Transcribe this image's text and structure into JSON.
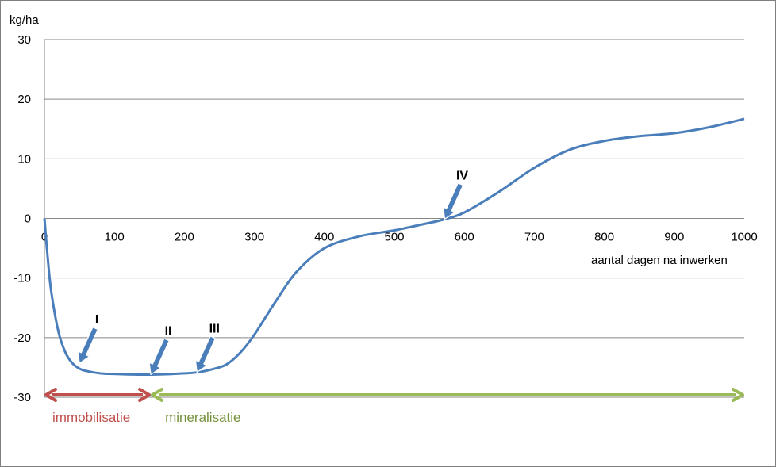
{
  "chart_data": {
    "type": "line",
    "title": "",
    "ylabel": "kg/ha",
    "xlabel": "aantal dagen na inwerken",
    "xlim": [
      0,
      1000
    ],
    "ylim": [
      -30,
      30
    ],
    "x_ticks": [
      "0",
      "100",
      "200",
      "300",
      "400",
      "500",
      "600",
      "700",
      "800",
      "900",
      "1000"
    ],
    "y_ticks": [
      "30",
      "20",
      "10",
      "0",
      "-10",
      "-20",
      "-30"
    ],
    "grid": true,
    "series": [
      {
        "color": "#4a7ebb",
        "x": [
          0,
          5,
          10,
          20,
          30,
          40,
          50,
          60,
          80,
          100,
          130,
          160,
          200,
          220,
          240,
          260,
          280,
          300,
          330,
          360,
          400,
          450,
          500,
          540,
          570,
          600,
          650,
          700,
          750,
          800,
          850,
          900,
          950,
          1000
        ],
        "y": [
          0,
          -7,
          -12.5,
          -19,
          -22.5,
          -24.3,
          -25.2,
          -25.6,
          -26,
          -26.1,
          -26.2,
          -26.2,
          -26,
          -25.8,
          -25.3,
          -24.5,
          -22.5,
          -19.5,
          -14,
          -9,
          -5,
          -3,
          -2,
          -1,
          -0.2,
          1,
          4.5,
          8.5,
          11.5,
          13,
          13.8,
          14.3,
          15.3,
          16.7
        ]
      }
    ],
    "markers": [
      {
        "label": "I",
        "x": 50,
        "y": -24.3
      },
      {
        "label": "II",
        "x": 152,
        "y": -26.2
      },
      {
        "label": "III",
        "x": 218,
        "y": -25.8
      },
      {
        "label": "IV",
        "x": 572,
        "y": -0.1
      }
    ],
    "phases": [
      {
        "label": "immobilisatie",
        "x_start": 0,
        "x_end": 152,
        "y": -29.6,
        "color": "#c0504d"
      },
      {
        "label": "mineralisatie",
        "x_start": 152,
        "x_end": 1000,
        "y": -29.6,
        "color": "#9bbb59",
        "text_color": "#76923c"
      }
    ]
  }
}
